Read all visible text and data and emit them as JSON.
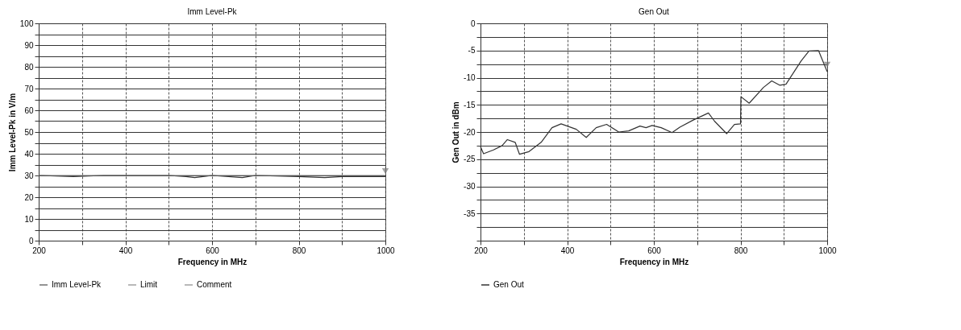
{
  "chart_data": [
    {
      "type": "line",
      "title": "Imm Level-Pk",
      "xlabel": "Frequency in MHz",
      "ylabel": "Imm Level-Pk in V/m",
      "xlim": [
        200,
        1000
      ],
      "ylim": [
        0,
        100
      ],
      "xticks": [
        200,
        {
          "value": 300,
          "label": null
        },
        400,
        {
          "value": 500,
          "label": null
        },
        600,
        {
          "value": 700,
          "label": null
        },
        800,
        {
          "value": 900,
          "label": null
        },
        1000
      ],
      "yticks": [
        0,
        {
          "value": 5,
          "label": null
        },
        10,
        {
          "value": 15,
          "label": null
        },
        20,
        {
          "value": 25,
          "label": null
        },
        30,
        {
          "value": 35,
          "label": null
        },
        40,
        {
          "value": 45,
          "label": null
        },
        50,
        {
          "value": 55,
          "label": null
        },
        60,
        {
          "value": 65,
          "label": null
        },
        70,
        {
          "value": 75,
          "label": null
        },
        80,
        {
          "value": 85,
          "label": null
        },
        90,
        {
          "value": 95,
          "label": null
        },
        100
      ],
      "grid": true,
      "legend": "bottom",
      "line_style": "solid",
      "marker": "none",
      "series": [
        {
          "name": "Imm Level-Pk",
          "color": "#333333",
          "x": [
            200,
            280,
            350,
            500,
            540,
            560,
            600,
            670,
            700,
            800,
            860,
            900,
            1000
          ],
          "values": [
            30,
            29.5,
            30,
            30,
            29.5,
            29,
            30,
            29,
            30,
            29.5,
            29,
            29.5,
            29.5
          ]
        },
        {
          "name": "Limit",
          "color": "#777777",
          "x": [
            200,
            1000
          ],
          "values": [
            30,
            30
          ]
        },
        {
          "name": "Comment",
          "type": "scatter",
          "marker": "triangle",
          "color": "#777777",
          "x": [
            1000
          ],
          "values": [
            32
          ]
        }
      ]
    },
    {
      "type": "line",
      "title": "Gen Out",
      "xlabel": "Frequency in MHz",
      "ylabel": "Gen Out in dBm",
      "xlim": [
        200,
        1000
      ],
      "ylim": [
        -40,
        0
      ],
      "xticks": [
        200,
        {
          "value": 300,
          "label": null
        },
        400,
        {
          "value": 500,
          "label": null
        },
        600,
        {
          "value": 700,
          "label": null
        },
        800,
        {
          "value": 900,
          "label": null
        },
        1000
      ],
      "yticks": [
        {
          "value": -40,
          "label": null
        },
        {
          "value": -37.5,
          "label": null
        },
        -35,
        {
          "value": -32.5,
          "label": null
        },
        -30,
        {
          "value": -27.5,
          "label": null
        },
        -25,
        {
          "value": -22.5,
          "label": null
        },
        -20,
        {
          "value": -17.5,
          "label": null
        },
        -15,
        {
          "value": -12.5,
          "label": null
        },
        -10,
        {
          "value": -7.5,
          "label": null
        },
        -5,
        {
          "value": -2.5,
          "label": null
        },
        0
      ],
      "grid": true,
      "legend": "bottom",
      "line_style": "solid",
      "marker": "none",
      "series": [
        {
          "name": "Gen Out",
          "color": "#333333",
          "x": [
            200,
            207,
            230,
            250,
            262,
            280,
            290,
            312,
            340,
            365,
            386,
            421,
            444,
            467,
            491,
            519,
            542,
            568,
            582,
            596,
            617,
            642,
            660,
            691,
            726,
            740,
            768,
            786,
            800,
            801,
            820,
            853,
            872,
            891,
            905,
            940,
            958,
            980,
            1000
          ],
          "values": [
            -22.7,
            -24,
            -23.3,
            -22.5,
            -21.4,
            -21.9,
            -24.1,
            -23.6,
            -21.9,
            -19.2,
            -18.5,
            -19.5,
            -21,
            -19.2,
            -18.6,
            -20,
            -19.8,
            -18.9,
            -19.2,
            -18.8,
            -19.2,
            -20.1,
            -19.1,
            -17.8,
            -16.5,
            -18,
            -20.3,
            -18.6,
            -18.5,
            -13.5,
            -14.7,
            -11.8,
            -10.6,
            -11.4,
            -11.2,
            -6.9,
            -5.1,
            -5,
            -8.9
          ]
        },
        {
          "type": "scatter",
          "marker": "triangle",
          "color": "#777777",
          "x": [
            1000
          ],
          "values": [
            -7.6
          ]
        }
      ]
    }
  ]
}
